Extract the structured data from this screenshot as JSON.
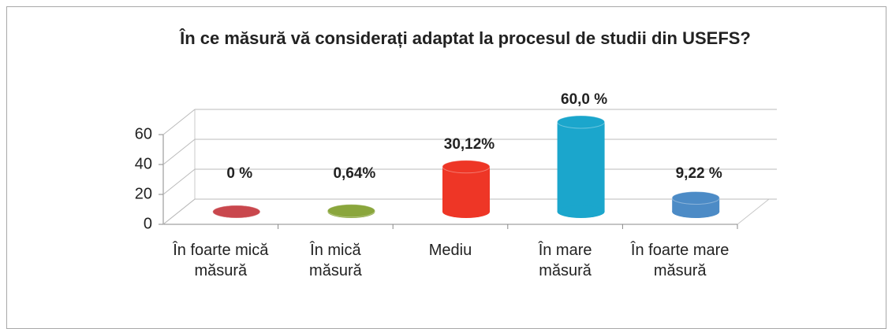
{
  "chart_data": {
    "type": "bar3d",
    "title": "În ce măsură vă considerați adaptat la procesul de studii din USEFS?",
    "categories": [
      "În foarte mică măsură",
      "În mică măsură",
      "Mediu",
      "În mare măsură",
      "În foarte mare măsură"
    ],
    "values": [
      0,
      0.64,
      30.12,
      60.0,
      9.22
    ],
    "value_labels": [
      "0 %",
      "0,64%",
      "30,12%",
      "60,0 %",
      "9,22 %"
    ],
    "colors": [
      "#c9474d",
      "#8aa63c",
      "#ee3626",
      "#1ba6cc",
      "#4c8bc6"
    ],
    "ylim": [
      0,
      60
    ],
    "yticks": [
      0,
      20,
      40,
      60
    ],
    "grid": true
  }
}
